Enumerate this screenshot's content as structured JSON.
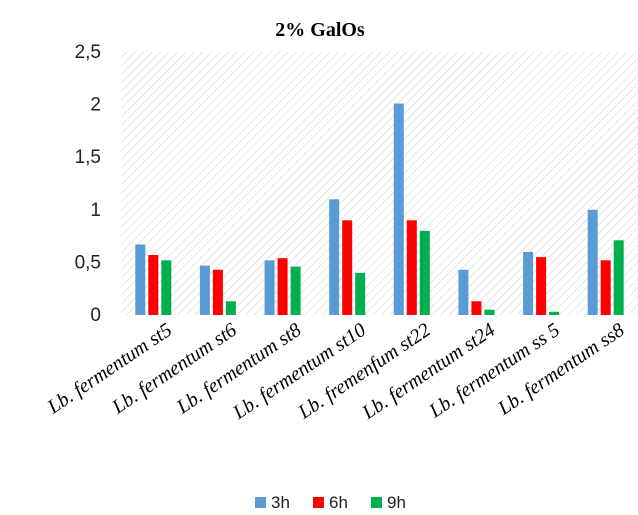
{
  "chart_data": {
    "type": "bar",
    "title": "2% GalOs",
    "xlabel": "",
    "ylabel": "",
    "categories": [
      "Lb. fermentum st5",
      "Lb. fermentum st6",
      "Lb. fermentum st8",
      "Lb. fermentum st10",
      "Lb. fremenfum st22",
      "Lb. fermentum st24",
      "Lb. fermentum ss 5",
      "Lb. fermentum ss8"
    ],
    "series": [
      {
        "name": "3h",
        "color": "#5B9BD5",
        "values": [
          0.67,
          0.47,
          0.52,
          1.1,
          2.01,
          0.43,
          0.6,
          1.0
        ]
      },
      {
        "name": "6h",
        "color": "#FF0000",
        "values": [
          0.57,
          0.43,
          0.54,
          0.9,
          0.9,
          0.13,
          0.55,
          0.52
        ]
      },
      {
        "name": "9h",
        "color": "#00B050",
        "values": [
          0.52,
          0.13,
          0.46,
          0.4,
          0.8,
          0.05,
          0.03,
          0.71
        ]
      }
    ],
    "ylim": [
      0,
      2.5
    ],
    "yticks": [
      "0",
      "0,5",
      "1",
      "1,5",
      "2",
      "2,5"
    ],
    "grid": false,
    "plot_background": "diagonal-hatch",
    "legend_position": "bottom"
  }
}
